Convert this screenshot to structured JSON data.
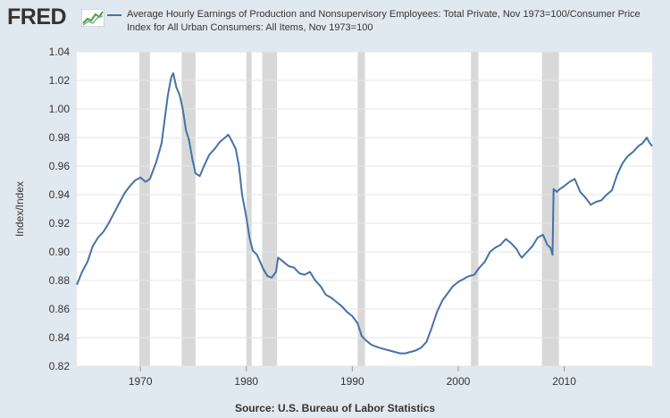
{
  "logo": {
    "text": "FRED"
  },
  "legend": {
    "label": "Average Hourly Earnings of Production and Nonsupervisory Employees: Total Private, Nov 1973=100/Consumer Price Index for All Urban Consumers: All Items, Nov 1973=100"
  },
  "source": "Source: U.S. Bureau of Labor Statistics",
  "colors": {
    "line": "#4572a7",
    "recession": "#d8d8d8",
    "background": "#e1e9f0",
    "plot": "#ffffff",
    "grid": "#e6e6e6"
  },
  "chart_data": {
    "type": "line",
    "title": "",
    "xlabel": "",
    "ylabel": "Index/Index",
    "xlim": [
      1964.0,
      2018.3
    ],
    "ylim": [
      0.82,
      1.04
    ],
    "yticks": [
      0.82,
      0.84,
      0.86,
      0.88,
      0.9,
      0.92,
      0.94,
      0.96,
      0.98,
      1.0,
      1.02,
      1.04
    ],
    "ytick_labels": [
      "0.82",
      "0.84",
      "0.86",
      "0.88",
      "0.90",
      "0.92",
      "0.94",
      "0.96",
      "0.98",
      "1.00",
      "1.02",
      "1.04"
    ],
    "xticks": [
      1970,
      1980,
      1990,
      2000,
      2010
    ],
    "xtick_labels": [
      "1970",
      "1980",
      "1990",
      "2000",
      "2010"
    ],
    "grid": true,
    "recessions": [
      [
        1969.9,
        1970.9
      ],
      [
        1973.9,
        1975.2
      ],
      [
        1980.0,
        1980.5
      ],
      [
        1981.5,
        1982.9
      ],
      [
        1990.5,
        1991.2
      ],
      [
        2001.2,
        2001.9
      ],
      [
        2007.9,
        2009.5
      ]
    ],
    "series": [
      {
        "name": "Average Hourly Earnings of Production and Nonsupervisory Employees: Total Private, Nov 1973=100/Consumer Price Index for All Urban Consumers: All Items, Nov 1973=100",
        "x": [
          1964.0,
          1964.5,
          1965.0,
          1965.5,
          1966.0,
          1966.5,
          1967.0,
          1967.5,
          1968.0,
          1968.5,
          1969.0,
          1969.5,
          1970.0,
          1970.5,
          1970.9,
          1971.5,
          1972.0,
          1972.3,
          1972.6,
          1972.9,
          1973.1,
          1973.4,
          1973.7,
          1974.0,
          1974.3,
          1974.6,
          1974.9,
          1975.2,
          1975.6,
          1976.0,
          1976.5,
          1977.0,
          1977.5,
          1978.0,
          1978.3,
          1978.6,
          1979.0,
          1979.3,
          1979.6,
          1980.0,
          1980.3,
          1980.6,
          1981.0,
          1981.3,
          1981.6,
          1982.0,
          1982.4,
          1982.8,
          1983.0,
          1983.5,
          1984.0,
          1984.5,
          1985.0,
          1985.5,
          1986.0,
          1986.5,
          1987.0,
          1987.5,
          1988.0,
          1988.5,
          1989.0,
          1989.5,
          1990.0,
          1990.5,
          1990.9,
          1991.3,
          1991.8,
          1992.5,
          1993.0,
          1993.5,
          1994.0,
          1994.5,
          1995.0,
          1995.5,
          1996.0,
          1996.5,
          1997.0,
          1997.5,
          1998.0,
          1998.5,
          1999.0,
          1999.5,
          2000.0,
          2000.5,
          2001.0,
          2001.5,
          2002.0,
          2002.5,
          2003.0,
          2003.5,
          2004.0,
          2004.5,
          2005.0,
          2005.5,
          2005.8,
          2006.0,
          2006.5,
          2007.0,
          2007.5,
          2008.0,
          2008.4,
          2008.7,
          2008.9,
          2009.0,
          2009.3,
          2009.6,
          2010.0,
          2010.5,
          2011.0,
          2011.5,
          2012.0,
          2012.5,
          2013.0,
          2013.5,
          2014.0,
          2014.5,
          2015.0,
          2015.5,
          2016.0,
          2016.5,
          2017.0,
          2017.4,
          2017.8,
          2018.0,
          2018.3
        ],
        "y": [
          0.877,
          0.886,
          0.893,
          0.904,
          0.91,
          0.914,
          0.92,
          0.927,
          0.934,
          0.941,
          0.946,
          0.95,
          0.952,
          0.949,
          0.951,
          0.963,
          0.976,
          0.993,
          1.01,
          1.022,
          1.025,
          1.015,
          1.01,
          1.0,
          0.985,
          0.978,
          0.965,
          0.955,
          0.953,
          0.96,
          0.968,
          0.972,
          0.977,
          0.98,
          0.982,
          0.978,
          0.972,
          0.96,
          0.94,
          0.924,
          0.91,
          0.901,
          0.898,
          0.893,
          0.888,
          0.883,
          0.882,
          0.886,
          0.896,
          0.893,
          0.89,
          0.889,
          0.885,
          0.884,
          0.886,
          0.88,
          0.876,
          0.87,
          0.868,
          0.865,
          0.862,
          0.858,
          0.855,
          0.85,
          0.841,
          0.838,
          0.835,
          0.833,
          0.832,
          0.831,
          0.83,
          0.829,
          0.829,
          0.83,
          0.831,
          0.833,
          0.837,
          0.847,
          0.858,
          0.866,
          0.871,
          0.876,
          0.879,
          0.881,
          0.883,
          0.884,
          0.889,
          0.893,
          0.9,
          0.903,
          0.905,
          0.909,
          0.906,
          0.902,
          0.898,
          0.896,
          0.9,
          0.904,
          0.91,
          0.912,
          0.905,
          0.903,
          0.898,
          0.944,
          0.942,
          0.944,
          0.946,
          0.949,
          0.951,
          0.942,
          0.938,
          0.933,
          0.935,
          0.936,
          0.94,
          0.943,
          0.954,
          0.962,
          0.967,
          0.97,
          0.974,
          0.976,
          0.98,
          0.977,
          0.974
        ]
      }
    ]
  }
}
